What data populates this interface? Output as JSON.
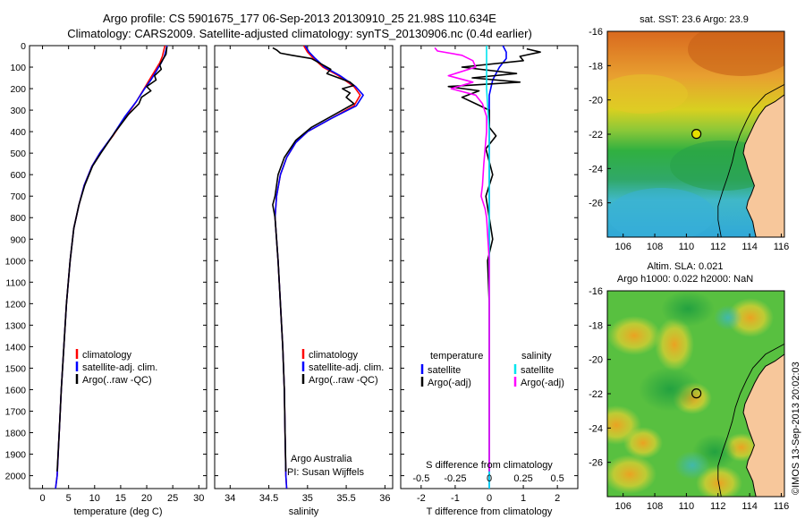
{
  "header": {
    "line1": "Argo profile: CS 5901675_177 06-Sep-2013 20130910_25 21.98S 110.634E",
    "line2": "Climatology: CARS2009. Satellite-adjusted climatology: synTS_20130906.nc (0.4d earlier)"
  },
  "colors": {
    "climatology": "#ff0000",
    "satellite": "#0000ff",
    "argo": "#000000",
    "sal_satellite": "#00e5ee",
    "sal_argo": "#ff00ff",
    "land": "#f7c79b"
  },
  "depth_axis": {
    "ticks": [
      "0",
      "100",
      "200",
      "300",
      "400",
      "500",
      "600",
      "700",
      "800",
      "900",
      "1000",
      "1100",
      "1200",
      "1300",
      "1400",
      "1500",
      "1600",
      "1700",
      "1800",
      "1900",
      "2000"
    ],
    "range": [
      0,
      2060
    ]
  },
  "chart_data": [
    {
      "id": "temperature",
      "type": "line",
      "xlabel": "temperature (deg C)",
      "xlim": [
        -2.5,
        31.5
      ],
      "xticks": [
        "0",
        "5",
        "10",
        "15",
        "20",
        "25",
        "30"
      ],
      "legend": [
        "climatology",
        "satellite-adj. clim.",
        "Argo(..raw -QC)"
      ],
      "series": [
        {
          "name": "climatology",
          "color": "#ff0000",
          "points": [
            [
              23.5,
              0
            ],
            [
              23.3,
              20
            ],
            [
              23.0,
              50
            ],
            [
              22.5,
              80
            ],
            [
              21.5,
              120
            ],
            [
              20.5,
              160
            ],
            [
              19.5,
              200
            ],
            [
              18.0,
              260
            ],
            [
              16.0,
              330
            ],
            [
              13.5,
              420
            ],
            [
              11.0,
              500
            ],
            [
              9.5,
              560
            ],
            [
              8.0,
              650
            ],
            [
              7.0,
              740
            ],
            [
              6.0,
              850
            ],
            [
              5.3,
              1000
            ],
            [
              4.6,
              1200
            ],
            [
              4.1,
              1400
            ],
            [
              3.6,
              1600
            ],
            [
              3.2,
              1800
            ],
            [
              2.8,
              2000
            ],
            [
              2.5,
              2060
            ]
          ]
        },
        {
          "name": "satellite-adj. clim.",
          "color": "#0000ff",
          "points": [
            [
              23.9,
              0
            ],
            [
              23.7,
              20
            ],
            [
              23.4,
              50
            ],
            [
              22.8,
              80
            ],
            [
              21.8,
              120
            ],
            [
              20.8,
              160
            ],
            [
              19.6,
              200
            ],
            [
              18.0,
              260
            ],
            [
              15.8,
              330
            ],
            [
              13.4,
              420
            ],
            [
              11.0,
              500
            ],
            [
              9.5,
              560
            ],
            [
              8.0,
              650
            ],
            [
              7.0,
              740
            ],
            [
              6.0,
              850
            ],
            [
              5.3,
              1000
            ],
            [
              4.6,
              1200
            ],
            [
              4.1,
              1400
            ],
            [
              3.6,
              1600
            ],
            [
              3.2,
              1800
            ],
            [
              2.8,
              2000
            ],
            [
              2.5,
              2060
            ]
          ]
        },
        {
          "name": "Argo(..raw -QC)",
          "color": "#000000",
          "points": [
            [
              23.9,
              5
            ],
            [
              23.8,
              20
            ],
            [
              23.7,
              40
            ],
            [
              23.2,
              60
            ],
            [
              22.5,
              90
            ],
            [
              22.8,
              110
            ],
            [
              21.5,
              140
            ],
            [
              21.8,
              160
            ],
            [
              20.0,
              190
            ],
            [
              20.8,
              210
            ],
            [
              19.0,
              240
            ],
            [
              18.5,
              270
            ],
            [
              16.5,
              320
            ],
            [
              14.0,
              400
            ],
            [
              11.2,
              500
            ],
            [
              9.6,
              560
            ],
            [
              8.1,
              650
            ],
            [
              7.0,
              740
            ],
            [
              6.0,
              850
            ],
            [
              5.3,
              1000
            ],
            [
              4.6,
              1200
            ],
            [
              4.1,
              1400
            ],
            [
              3.6,
              1600
            ],
            [
              3.2,
              1800
            ],
            [
              2.8,
              1980
            ]
          ]
        }
      ]
    },
    {
      "id": "salinity",
      "type": "line",
      "xlabel": "salinity",
      "xlim": [
        33.8,
        36.1
      ],
      "xticks": [
        "34",
        "34.5",
        "35",
        "35.5",
        "36"
      ],
      "legend": [
        "climatology",
        "satellite-adj. clim.",
        "Argo(..raw -QC)"
      ],
      "annotation": [
        "Argo Australia",
        "PI: Susan Wijffels"
      ],
      "series": [
        {
          "name": "climatology",
          "color": "#ff0000",
          "points": [
            [
              34.95,
              0
            ],
            [
              35.0,
              30
            ],
            [
              35.08,
              60
            ],
            [
              35.2,
              100
            ],
            [
              35.4,
              140
            ],
            [
              35.6,
              190
            ],
            [
              35.68,
              230
            ],
            [
              35.6,
              280
            ],
            [
              35.3,
              340
            ],
            [
              35.0,
              400
            ],
            [
              34.85,
              450
            ],
            [
              34.73,
              520
            ],
            [
              34.65,
              600
            ],
            [
              34.6,
              700
            ],
            [
              34.58,
              800
            ],
            [
              34.6,
              900
            ],
            [
              34.62,
              1000
            ],
            [
              34.65,
              1200
            ],
            [
              34.68,
              1400
            ],
            [
              34.7,
              1600
            ],
            [
              34.71,
              1800
            ],
            [
              34.72,
              2000
            ],
            [
              34.73,
              2060
            ]
          ]
        },
        {
          "name": "satellite-adj. clim.",
          "color": "#0000ff",
          "points": [
            [
              34.97,
              0
            ],
            [
              35.02,
              30
            ],
            [
              35.1,
              60
            ],
            [
              35.22,
              100
            ],
            [
              35.42,
              140
            ],
            [
              35.62,
              190
            ],
            [
              35.72,
              230
            ],
            [
              35.63,
              280
            ],
            [
              35.3,
              340
            ],
            [
              35.0,
              400
            ],
            [
              34.85,
              450
            ],
            [
              34.73,
              520
            ],
            [
              34.65,
              600
            ],
            [
              34.6,
              700
            ],
            [
              34.58,
              800
            ],
            [
              34.6,
              900
            ],
            [
              34.62,
              1000
            ],
            [
              34.65,
              1200
            ],
            [
              34.68,
              1400
            ],
            [
              34.7,
              1600
            ],
            [
              34.71,
              1800
            ],
            [
              34.72,
              2000
            ],
            [
              34.73,
              2060
            ]
          ]
        },
        {
          "name": "Argo(..raw -QC)",
          "color": "#000000",
          "points": [
            [
              34.55,
              10
            ],
            [
              34.6,
              20
            ],
            [
              34.65,
              35
            ],
            [
              34.8,
              45
            ],
            [
              35.05,
              60
            ],
            [
              35.15,
              80
            ],
            [
              35.3,
              110
            ],
            [
              35.25,
              130
            ],
            [
              35.4,
              150
            ],
            [
              35.55,
              170
            ],
            [
              35.6,
              185
            ],
            [
              35.45,
              200
            ],
            [
              35.55,
              220
            ],
            [
              35.5,
              240
            ],
            [
              35.6,
              270
            ],
            [
              35.35,
              320
            ],
            [
              35.05,
              380
            ],
            [
              34.85,
              440
            ],
            [
              34.7,
              520
            ],
            [
              34.62,
              600
            ],
            [
              34.58,
              700
            ],
            [
              34.55,
              740
            ],
            [
              34.58,
              800
            ],
            [
              34.6,
              900
            ],
            [
              34.62,
              1000
            ],
            [
              34.65,
              1200
            ],
            [
              34.68,
              1400
            ],
            [
              34.7,
              1600
            ],
            [
              34.71,
              1800
            ],
            [
              34.72,
              1980
            ]
          ]
        }
      ]
    },
    {
      "id": "differences",
      "type": "line",
      "top_xlabel": "S difference from climatology",
      "top_xticks": [
        "-0.5",
        "-0.25",
        "0",
        "0.25",
        "0.5"
      ],
      "xlabel": "T difference from climatology",
      "xticks": [
        "-2",
        "-1",
        "0",
        "1",
        "2"
      ],
      "xlim": [
        -2.6,
        2.6
      ],
      "legend_temperature": {
        "heading": "temperature",
        "items": [
          "satellite",
          "Argo(-adj)"
        ]
      },
      "legend_salinity": {
        "heading": "salinity",
        "items": [
          "satellite",
          "Argo(-adj)"
        ]
      },
      "series": [
        {
          "name": "T satellite",
          "color": "#0000ff",
          "points": [
            [
              0.4,
              0
            ],
            [
              0.5,
              30
            ],
            [
              0.5,
              60
            ],
            [
              0.3,
              100
            ],
            [
              0.1,
              160
            ],
            [
              0.0,
              230
            ],
            [
              0.0,
              2060
            ]
          ]
        },
        {
          "name": "T Argo(-adj)",
          "color": "#000000",
          "points": [
            [
              1.1,
              15
            ],
            [
              1.5,
              30
            ],
            [
              0.9,
              50
            ],
            [
              1.0,
              70
            ],
            [
              -0.8,
              100
            ],
            [
              0.8,
              130
            ],
            [
              -0.5,
              150
            ],
            [
              0.9,
              170
            ],
            [
              -1.2,
              190
            ],
            [
              -0.3,
              210
            ],
            [
              -0.8,
              240
            ],
            [
              -0.4,
              270
            ],
            [
              0.0,
              300
            ],
            [
              0.0,
              380
            ],
            [
              0.2,
              420
            ],
            [
              -0.1,
              480
            ],
            [
              0.1,
              600
            ],
            [
              -0.1,
              700
            ],
            [
              0.0,
              800
            ],
            [
              0.1,
              900
            ],
            [
              -0.05,
              1000
            ],
            [
              0.0,
              1200
            ],
            [
              0.0,
              1980
            ]
          ]
        },
        {
          "name": "S satellite",
          "color": "#00e5ee",
          "points": [
            [
              -0.02,
              0
            ],
            [
              -0.02,
              200
            ],
            [
              0.0,
              400
            ],
            [
              0.0,
              2060
            ]
          ]
        },
        {
          "name": "S Argo(-adj)",
          "color": "#ff00ff",
          "points": [
            [
              -0.4,
              10
            ],
            [
              -0.38,
              25
            ],
            [
              -0.2,
              45
            ],
            [
              -0.12,
              70
            ],
            [
              -0.1,
              100
            ],
            [
              -0.3,
              140
            ],
            [
              -0.12,
              170
            ],
            [
              -0.28,
              200
            ],
            [
              -0.1,
              230
            ],
            [
              -0.05,
              270
            ],
            [
              -0.02,
              330
            ],
            [
              -0.02,
              400
            ],
            [
              -0.04,
              550
            ],
            [
              -0.05,
              650
            ],
            [
              -0.06,
              700
            ],
            [
              -0.03,
              760
            ],
            [
              -0.02,
              800
            ],
            [
              0.0,
              1000
            ],
            [
              0.0,
              1980
            ]
          ]
        }
      ]
    }
  ],
  "maps": [
    {
      "id": "sst-map",
      "title": "sat. SST: 23.6 Argo: 23.9",
      "xticks": [
        "106",
        "108",
        "110",
        "112",
        "114",
        "116"
      ],
      "yticks": [
        "-16",
        "-18",
        "-20",
        "-22",
        "-24",
        "-26"
      ],
      "lon_range": [
        105,
        116.2
      ],
      "lat_range": [
        -28,
        -16
      ],
      "marker": {
        "lon": 110.634,
        "lat": -21.98
      }
    },
    {
      "id": "sla-map",
      "title_line1": "Altim. SLA: 0.021",
      "title_line2": "Argo h1000: 0.022 h2000: NaN",
      "xticks": [
        "106",
        "108",
        "110",
        "112",
        "114",
        "116"
      ],
      "yticks": [
        "-16",
        "-18",
        "-20",
        "-22",
        "-24",
        "-26"
      ],
      "lon_range": [
        105,
        116.2
      ],
      "lat_range": [
        -28,
        -16
      ],
      "marker": {
        "lon": 110.634,
        "lat": -21.98
      }
    }
  ],
  "side_label": "©IMOS 13-Sep-2013 20:02:03"
}
